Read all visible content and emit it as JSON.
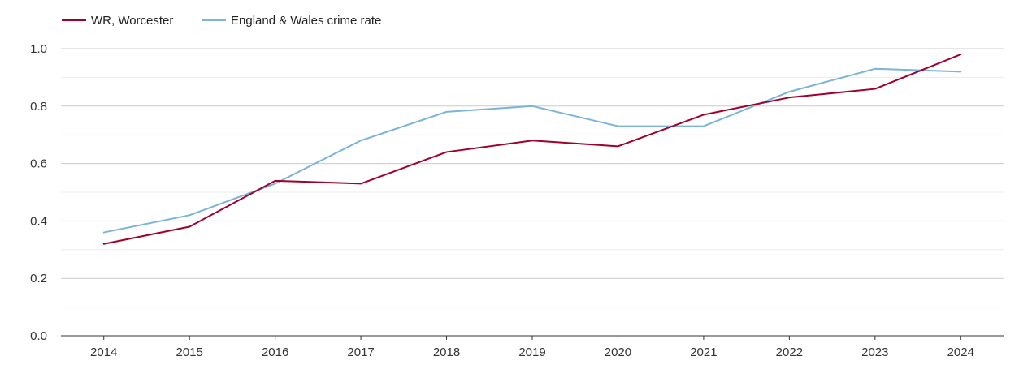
{
  "chart_data": {
    "type": "line",
    "title": "",
    "xlabel": "",
    "ylabel": "",
    "categories": [
      "2014",
      "2015",
      "2016",
      "2017",
      "2018",
      "2019",
      "2020",
      "2021",
      "2022",
      "2023",
      "2024"
    ],
    "ylim": [
      0,
      1.0
    ],
    "yticks": [
      "0.0",
      "0.2",
      "0.4",
      "0.6",
      "0.8",
      "1.0"
    ],
    "grid": true,
    "legend_position": "top-left",
    "series": [
      {
        "name": "WR, Worcester",
        "color": "#a0002c",
        "values": [
          0.32,
          0.38,
          0.54,
          0.53,
          0.64,
          0.68,
          0.66,
          0.77,
          0.83,
          0.86,
          0.98
        ]
      },
      {
        "name": "England & Wales crime rate",
        "color": "#7ab4d6",
        "values": [
          0.36,
          0.42,
          0.53,
          0.68,
          0.78,
          0.8,
          0.73,
          0.73,
          0.85,
          0.93,
          0.92
        ]
      }
    ]
  }
}
